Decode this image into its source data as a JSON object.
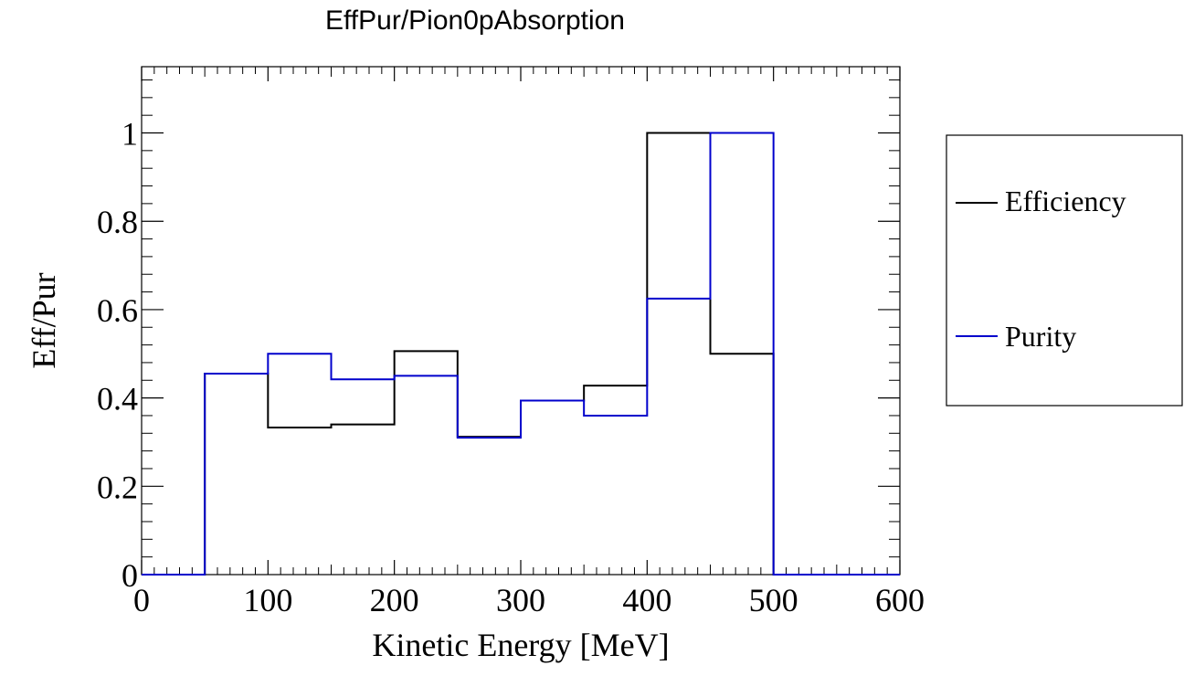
{
  "chart_data": {
    "type": "line",
    "step": true,
    "title": "EffPur/Pion0pAbsorption",
    "xlabel": "Kinetic Energy [MeV]",
    "ylabel": "Eff/Pur",
    "xlim": [
      0,
      600
    ],
    "ylim": [
      0,
      1.15
    ],
    "bin_edges": [
      0,
      50,
      100,
      150,
      200,
      250,
      300,
      350,
      400,
      450,
      500,
      550,
      600
    ],
    "x_ticks": [
      "0",
      "100",
      "200",
      "300",
      "400",
      "500",
      "600"
    ],
    "y_ticks": [
      "0",
      "0.2",
      "0.4",
      "0.6",
      "0.8",
      "1"
    ],
    "x_tick_values": [
      0,
      100,
      200,
      300,
      400,
      500,
      600
    ],
    "y_tick_values": [
      0,
      0.2,
      0.4,
      0.6,
      0.8,
      1.0
    ],
    "grid": false,
    "legend_position": "right",
    "series": [
      {
        "name": "Efficiency",
        "color": "#000000",
        "values": [
          0,
          0.455,
          0.333,
          0.34,
          0.506,
          0.312,
          0.394,
          0.428,
          1.0,
          0.5,
          0,
          0
        ]
      },
      {
        "name": "Purity",
        "color": "#0000cc",
        "values": [
          0,
          0.455,
          0.5,
          0.442,
          0.45,
          0.31,
          0.394,
          0.36,
          0.625,
          1.0,
          0,
          0
        ]
      }
    ]
  }
}
